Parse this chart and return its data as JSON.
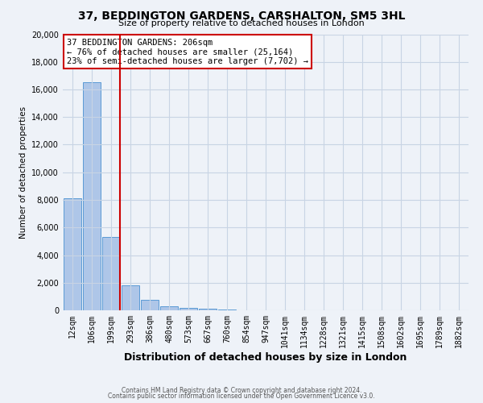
{
  "title": "37, BEDDINGTON GARDENS, CARSHALTON, SM5 3HL",
  "subtitle": "Size of property relative to detached houses in London",
  "xlabel": "Distribution of detached houses by size in London",
  "ylabel": "Number of detached properties",
  "categories": [
    "12sqm",
    "106sqm",
    "199sqm",
    "293sqm",
    "386sqm",
    "480sqm",
    "573sqm",
    "667sqm",
    "760sqm",
    "854sqm",
    "947sqm",
    "1041sqm",
    "1134sqm",
    "1228sqm",
    "1321sqm",
    "1415sqm",
    "1508sqm",
    "1602sqm",
    "1695sqm",
    "1789sqm",
    "1882sqm"
  ],
  "values": [
    8100,
    16500,
    5300,
    1800,
    750,
    300,
    200,
    100,
    50,
    0,
    0,
    0,
    0,
    0,
    0,
    0,
    0,
    0,
    0,
    0,
    0
  ],
  "bar_color": "#aec6e8",
  "bar_edge_color": "#5b9bd5",
  "red_line_index": 2,
  "annotation_title": "37 BEDDINGTON GARDENS: 206sqm",
  "annotation_line1": "← 76% of detached houses are smaller (25,164)",
  "annotation_line2": "23% of semi-detached houses are larger (7,702) →",
  "annotation_box_color": "#ffffff",
  "annotation_box_edge": "#cc0000",
  "ylim": [
    0,
    20000
  ],
  "yticks": [
    0,
    2000,
    4000,
    6000,
    8000,
    10000,
    12000,
    14000,
    16000,
    18000,
    20000
  ],
  "footer1": "Contains HM Land Registry data © Crown copyright and database right 2024.",
  "footer2": "Contains public sector information licensed under the Open Government Licence v3.0.",
  "background_color": "#eef2f8",
  "grid_color": "#c8d4e4",
  "red_line_color": "#cc0000",
  "title_fontsize": 10,
  "subtitle_fontsize": 8,
  "ylabel_fontsize": 7.5,
  "xlabel_fontsize": 9,
  "tick_fontsize": 7,
  "footer_fontsize": 5.5
}
